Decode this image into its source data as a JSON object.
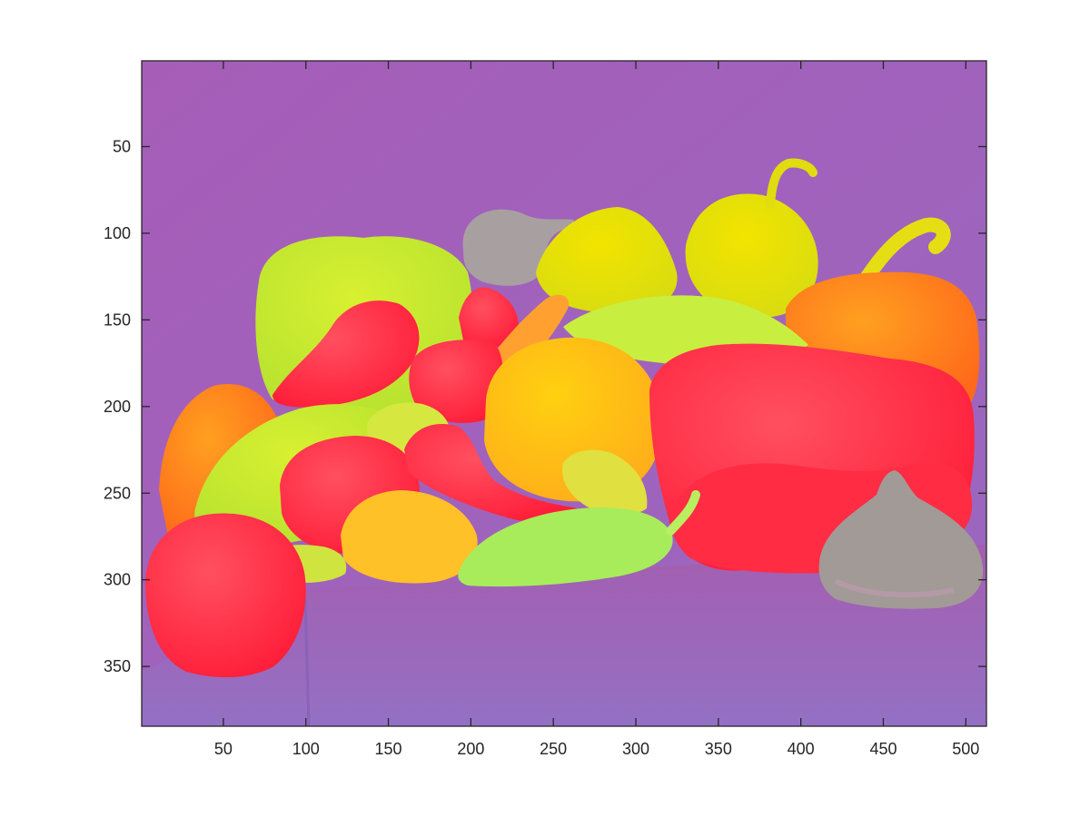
{
  "figure": {
    "kind": "image display with pixel axes",
    "x_ticks": [
      "50",
      "100",
      "150",
      "200",
      "250",
      "300",
      "350",
      "400",
      "450",
      "500"
    ],
    "y_ticks": [
      "50",
      "100",
      "150",
      "200",
      "250",
      "300",
      "350"
    ],
    "x_tick_values": [
      50,
      100,
      150,
      200,
      250,
      300,
      350,
      400,
      450,
      500
    ],
    "y_tick_values": [
      50,
      100,
      150,
      200,
      250,
      300,
      350
    ],
    "x_range": [
      0.5,
      512.5
    ],
    "y_range": [
      0.5,
      384.5
    ],
    "y_direction": "reversed",
    "colors": {
      "background": "#9b5fb5",
      "red": "#ff2a3c",
      "orange": "#ff7a1a",
      "yellow": "#e8e000",
      "yellow_green": "#c8ee20",
      "green": "#9ff060",
      "gray": "#999999",
      "axis": "#262626"
    }
  }
}
